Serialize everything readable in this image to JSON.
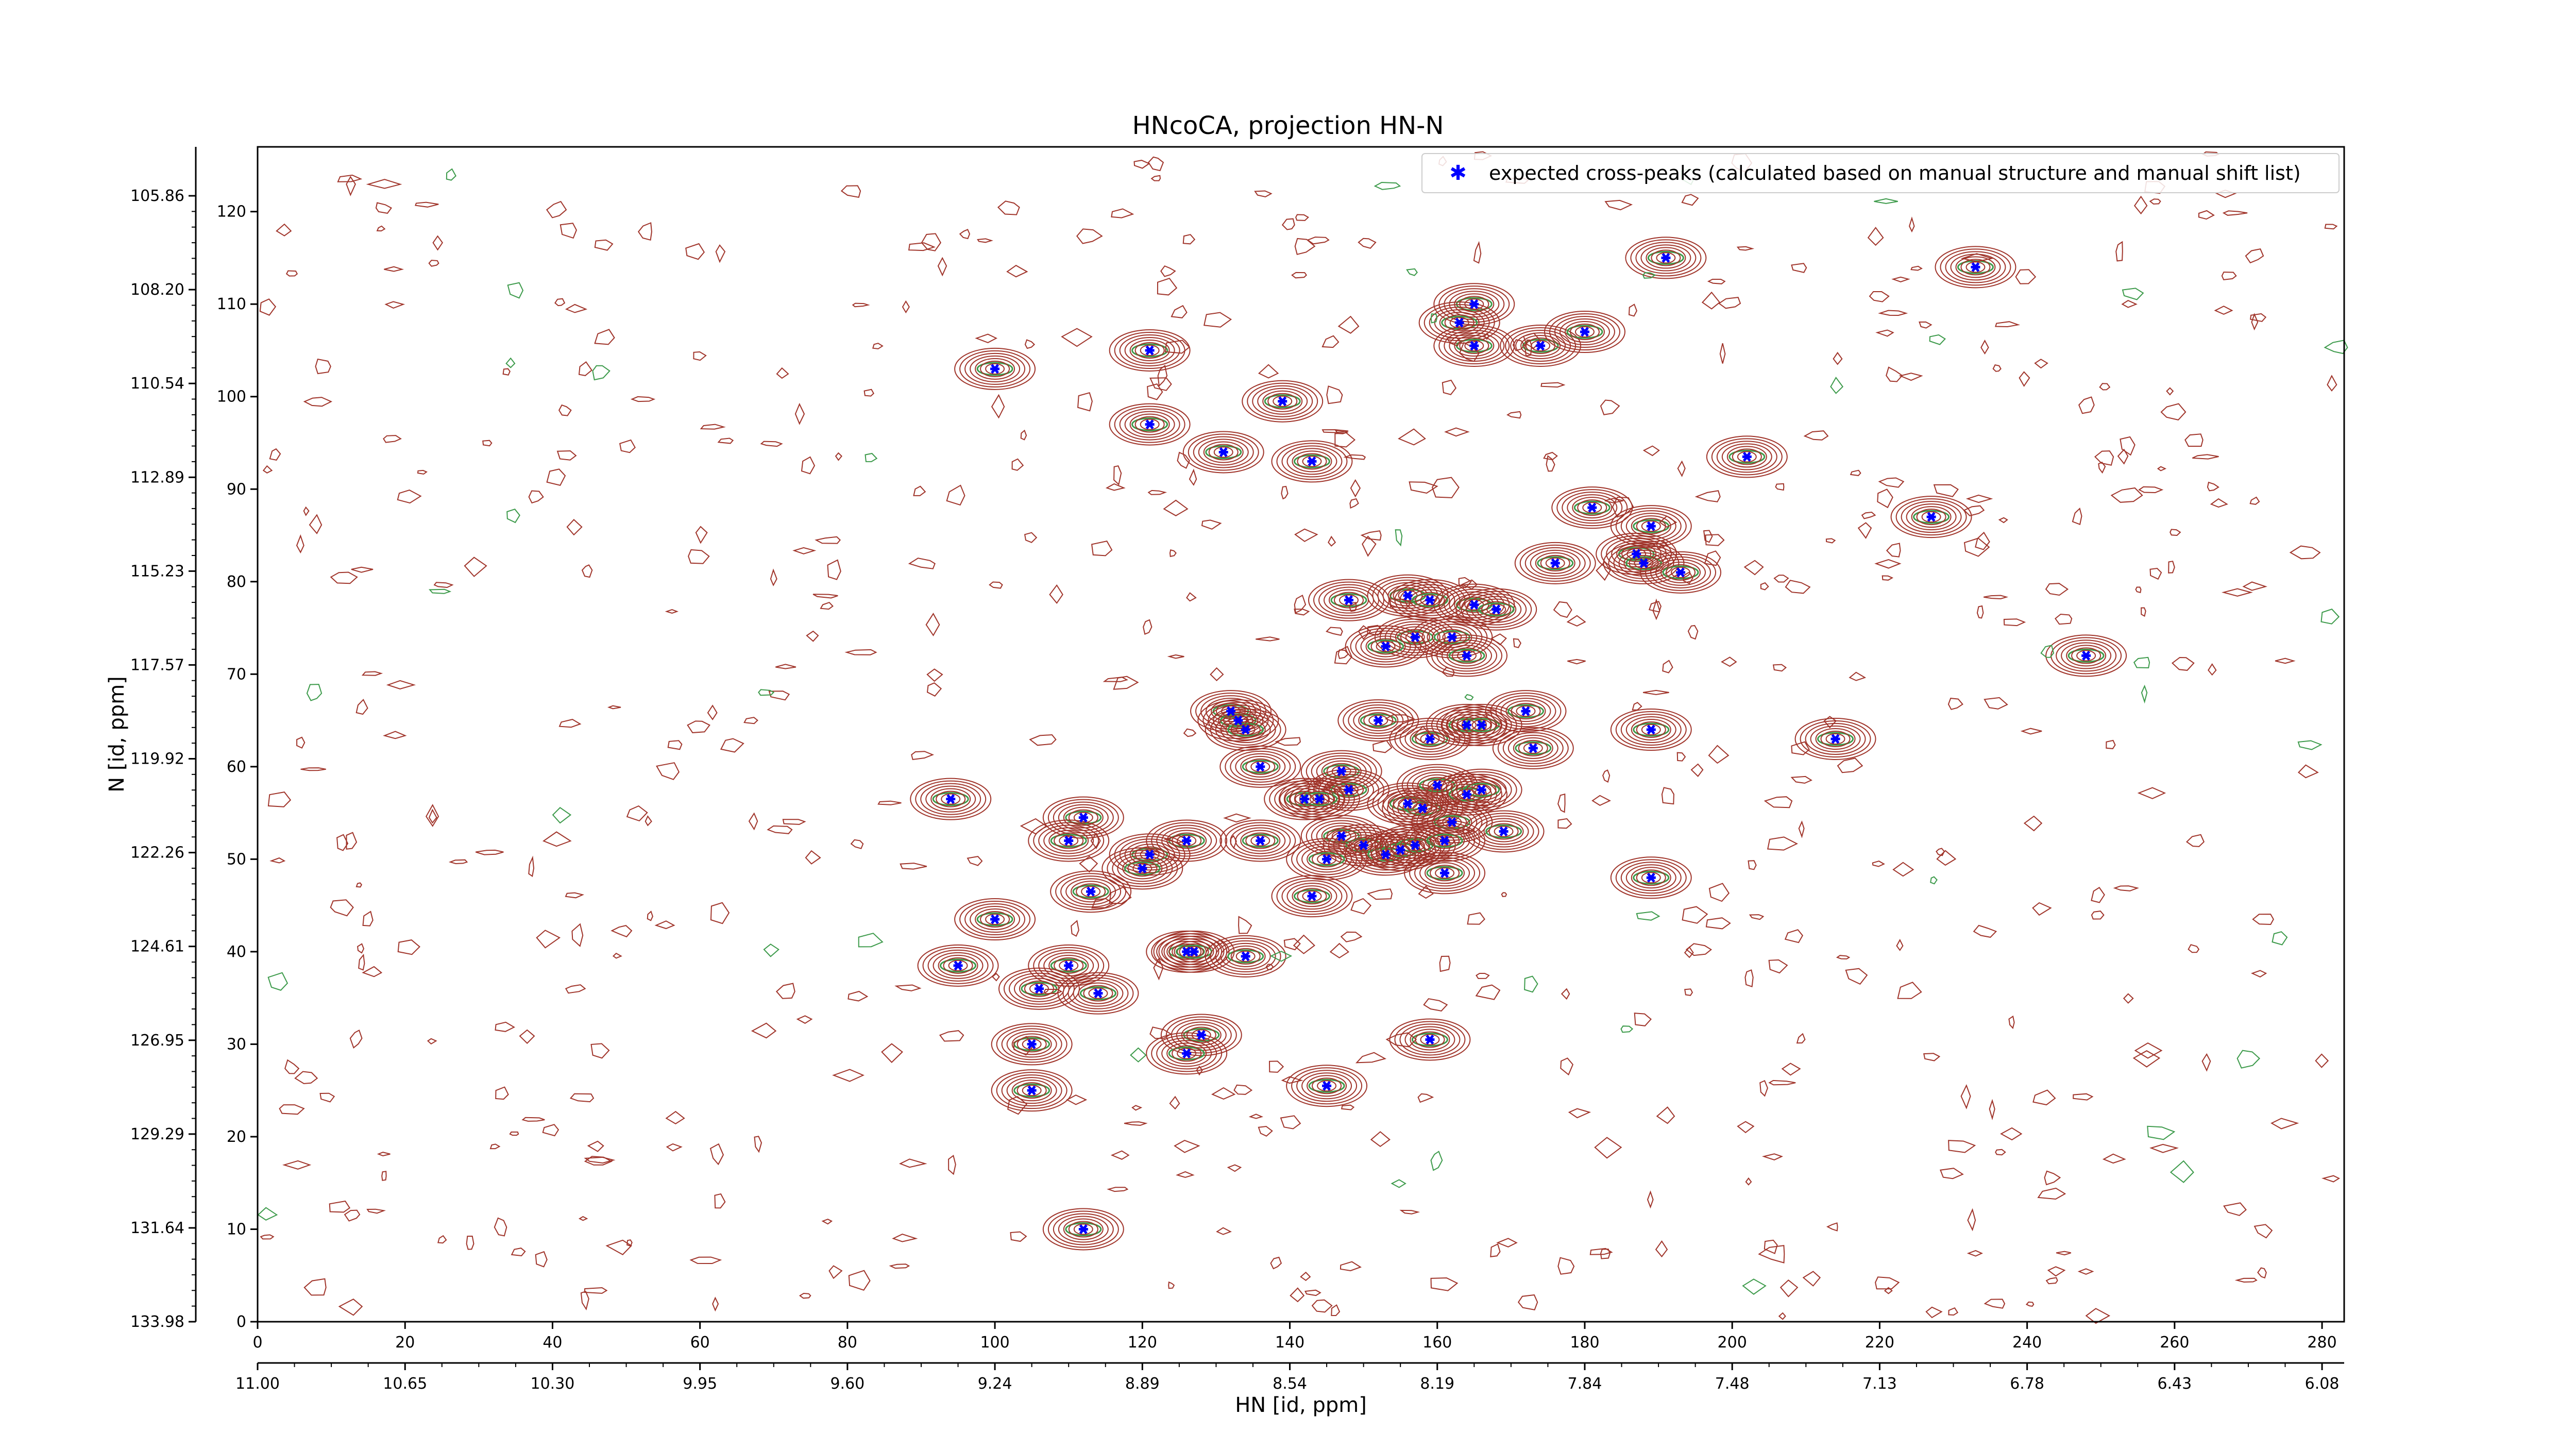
{
  "chart_data": {
    "type": "scatter",
    "title": "HNcoCA, projection HN-N",
    "xlabel": "HN [id, ppm]",
    "ylabel": "N [id, ppm]",
    "xlim": [
      0,
      283
    ],
    "ylim": [
      0,
      127
    ],
    "x_ticks": [
      0,
      20,
      40,
      60,
      80,
      100,
      120,
      140,
      160,
      180,
      200,
      220,
      240,
      260,
      280
    ],
    "y_ticks": [
      0,
      10,
      20,
      30,
      40,
      50,
      60,
      70,
      80,
      90,
      100,
      110,
      120
    ],
    "ppm_x_ticks": [
      "11.00",
      "10.65",
      "10.30",
      "9.95",
      "9.60",
      "9.24",
      "8.89",
      "8.54",
      "8.19",
      "7.84",
      "7.48",
      "7.13",
      "6.78",
      "6.43",
      "6.08"
    ],
    "ppm_y_ticks": [
      "133.98",
      "131.64",
      "129.29",
      "126.95",
      "124.61",
      "122.26",
      "119.92",
      "117.57",
      "115.23",
      "112.89",
      "110.54",
      "108.20",
      "105.86"
    ],
    "legend": {
      "label": "expected cross-peaks (calculated based on manual structure and manual shift list)",
      "placement": "top-right"
    },
    "colors": {
      "marker": "#0000ff",
      "contour_positive": "#a0342a",
      "contour_negative": "#3c9a4a",
      "background": "#ffffff"
    },
    "series": [
      {
        "name": "expected cross-peaks (calculated based on manual structure and manual shift list)",
        "points": [
          [
            100,
            103
          ],
          [
            121,
            105
          ],
          [
            121,
            97
          ],
          [
            139,
            99.5
          ],
          [
            131,
            94
          ],
          [
            143,
            93
          ],
          [
            191,
            115
          ],
          [
            233,
            114
          ],
          [
            165,
            110
          ],
          [
            163,
            108
          ],
          [
            165,
            105.5
          ],
          [
            174,
            105.5
          ],
          [
            180,
            107
          ],
          [
            202,
            93.5
          ],
          [
            181,
            88
          ],
          [
            189,
            86
          ],
          [
            227,
            87
          ],
          [
            176,
            82
          ],
          [
            187,
            83
          ],
          [
            188,
            82
          ],
          [
            193,
            81
          ],
          [
            148,
            78
          ],
          [
            156,
            78.5
          ],
          [
            159,
            78
          ],
          [
            165,
            77.5
          ],
          [
            168,
            77
          ],
          [
            157,
            74
          ],
          [
            153,
            73
          ],
          [
            162,
            74
          ],
          [
            164,
            72
          ],
          [
            248,
            72
          ],
          [
            132,
            66
          ],
          [
            133,
            65
          ],
          [
            134,
            64
          ],
          [
            152,
            65
          ],
          [
            159,
            63
          ],
          [
            164,
            64.5
          ],
          [
            166,
            64.5
          ],
          [
            172,
            66
          ],
          [
            173,
            62
          ],
          [
            189,
            64
          ],
          [
            214,
            63
          ],
          [
            136,
            60
          ],
          [
            147,
            59.5
          ],
          [
            148,
            57.5
          ],
          [
            142,
            56.5
          ],
          [
            144,
            56.5
          ],
          [
            156,
            56
          ],
          [
            158,
            55.5
          ],
          [
            160,
            58
          ],
          [
            162,
            54
          ],
          [
            164,
            57
          ],
          [
            166,
            57.5
          ],
          [
            94,
            56.5
          ],
          [
            112,
            54.5
          ],
          [
            110,
            52
          ],
          [
            126,
            52
          ],
          [
            136,
            52
          ],
          [
            147,
            52.5
          ],
          [
            150,
            51.5
          ],
          [
            153,
            50.5
          ],
          [
            155,
            51
          ],
          [
            157,
            51.5
          ],
          [
            161,
            52
          ],
          [
            169,
            53
          ],
          [
            121,
            50.5
          ],
          [
            120,
            49
          ],
          [
            145,
            50
          ],
          [
            161,
            48.5
          ],
          [
            113,
            46.5
          ],
          [
            189,
            48
          ],
          [
            143,
            46
          ],
          [
            100,
            43.5
          ],
          [
            126,
            40
          ],
          [
            127,
            40
          ],
          [
            134,
            39.5
          ],
          [
            95,
            38.5
          ],
          [
            110,
            38.5
          ],
          [
            106,
            36
          ],
          [
            114,
            35.5
          ],
          [
            128,
            31
          ],
          [
            126,
            29
          ],
          [
            105,
            30
          ],
          [
            159,
            30.5
          ],
          [
            105,
            25
          ],
          [
            145,
            25.5
          ],
          [
            112,
            10
          ]
        ]
      }
    ]
  }
}
